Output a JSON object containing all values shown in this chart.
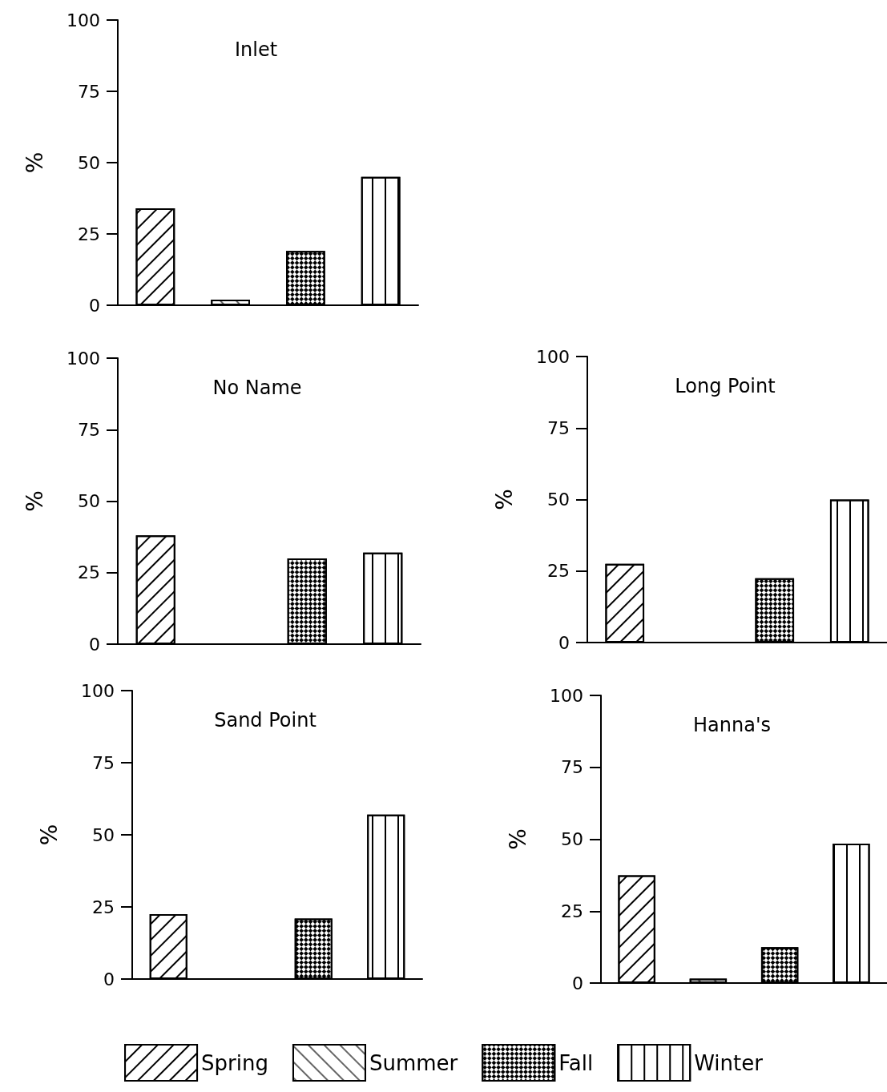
{
  "chart_data": [
    {
      "type": "bar",
      "title": "Inlet",
      "ylabel": "%",
      "categories": [
        null,
        null,
        null,
        null
      ],
      "ylim": [
        0,
        100
      ],
      "yticks": [
        0,
        25,
        50,
        75,
        100
      ],
      "series": [
        {
          "name": "Spring",
          "color": "#ffffff",
          "values": [
            34,
            null,
            null,
            null
          ]
        },
        {
          "name": "Summer",
          "color": "#ffffff",
          "values": [
            null,
            2,
            null,
            null
          ]
        },
        {
          "name": "Fall",
          "color": "#ffffff",
          "values": [
            null,
            null,
            19,
            null
          ]
        },
        {
          "name": "Winter",
          "color": "#ffffff",
          "values": [
            null,
            null,
            null,
            45
          ]
        }
      ]
    },
    {
      "type": "bar",
      "title": "No Name",
      "ylabel": "%",
      "categories": [
        null,
        null,
        null,
        null
      ],
      "ylim": [
        0,
        100
      ],
      "yticks": [
        0,
        25,
        50,
        75,
        100
      ],
      "series": [
        {
          "name": "Spring",
          "color": "#ffffff",
          "values": [
            38,
            null,
            null,
            null
          ]
        },
        {
          "name": "Summer",
          "color": "#ffffff",
          "values": [
            null,
            null,
            null,
            null
          ]
        },
        {
          "name": "Fall",
          "color": "#ffffff",
          "values": [
            null,
            null,
            30,
            null
          ]
        },
        {
          "name": "Winter",
          "color": "#ffffff",
          "values": [
            null,
            null,
            null,
            32
          ]
        }
      ]
    },
    {
      "type": "bar",
      "title": "Long Point",
      "ylabel": "%",
      "categories": [
        null,
        null,
        null,
        null
      ],
      "ylim": [
        0,
        100
      ],
      "yticks": [
        0,
        25,
        50,
        75,
        100
      ],
      "series": [
        {
          "name": "Spring",
          "color": "#ffffff",
          "values": [
            27.5,
            null,
            null,
            null
          ]
        },
        {
          "name": "Summer",
          "color": "#ffffff",
          "values": [
            null,
            null,
            null,
            null
          ]
        },
        {
          "name": "Fall",
          "color": "#ffffff",
          "values": [
            null,
            null,
            22.5,
            null
          ]
        },
        {
          "name": "Winter",
          "color": "#ffffff",
          "values": [
            null,
            null,
            null,
            50
          ]
        }
      ]
    },
    {
      "type": "bar",
      "title": "Sand Point",
      "ylabel": "%",
      "categories": [
        null,
        null,
        null,
        null
      ],
      "ylim": [
        0,
        100
      ],
      "yticks": [
        0,
        25,
        50,
        75,
        100
      ],
      "series": [
        {
          "name": "Spring",
          "color": "#ffffff",
          "values": [
            22.5,
            null,
            null,
            null
          ]
        },
        {
          "name": "Summer",
          "color": "#ffffff",
          "values": [
            null,
            null,
            null,
            null
          ]
        },
        {
          "name": "Fall",
          "color": "#ffffff",
          "values": [
            null,
            null,
            21,
            null
          ]
        },
        {
          "name": "Winter",
          "color": "#ffffff",
          "values": [
            null,
            null,
            null,
            57
          ]
        }
      ]
    },
    {
      "type": "bar",
      "title": "Hanna's",
      "ylabel": "%",
      "categories": [
        null,
        null,
        null,
        null
      ],
      "ylim": [
        0,
        100
      ],
      "yticks": [
        0,
        25,
        50,
        75,
        100
      ],
      "legend": "bottom",
      "series": [
        {
          "name": "Spring",
          "color": "#ffffff",
          "values": [
            37.5,
            null,
            null,
            null
          ]
        },
        {
          "name": "Summer",
          "color": "#ffffff",
          "values": [
            null,
            1.5,
            null,
            null
          ]
        },
        {
          "name": "Fall",
          "color": "#ffffff",
          "values": [
            null,
            null,
            12.5,
            null
          ]
        },
        {
          "name": "Winter",
          "color": "#ffffff",
          "values": [
            null,
            null,
            null,
            48.5
          ]
        }
      ]
    }
  ]
}
